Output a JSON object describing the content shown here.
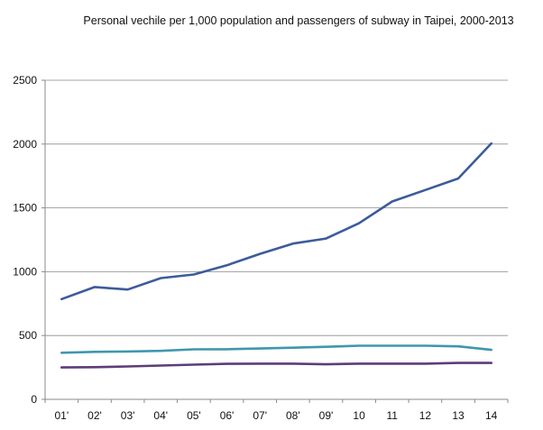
{
  "chart_data": {
    "type": "line",
    "title": "Personal vechile per 1,000 population and passengers of subway  in Taipei, 2000-2013",
    "xlabel": "",
    "ylabel": "",
    "categories": [
      "01'",
      "02'",
      "03'",
      "04'",
      "05'",
      "06'",
      "07'",
      "08'",
      "09'",
      "10",
      "11",
      "12",
      "13",
      "14"
    ],
    "ylim": [
      0,
      2500
    ],
    "yticks": [
      0,
      500,
      1000,
      1500,
      2000,
      2500
    ],
    "grid": true,
    "legend": "none",
    "series": [
      {
        "name": "Series 1",
        "color": "#3C5C9A",
        "values": [
          785,
          880,
          860,
          950,
          978,
          1050,
          1140,
          1220,
          1260,
          1380,
          1550,
          1640,
          1730,
          2005
        ]
      },
      {
        "name": "Series 2",
        "color": "#3E97AE",
        "values": [
          365,
          372,
          375,
          380,
          392,
          393,
          398,
          405,
          412,
          420,
          420,
          420,
          415,
          388
        ]
      },
      {
        "name": "Series 3",
        "color": "#5E3C78",
        "values": [
          250,
          252,
          258,
          265,
          272,
          278,
          280,
          280,
          275,
          280,
          280,
          280,
          285,
          285
        ]
      }
    ]
  }
}
